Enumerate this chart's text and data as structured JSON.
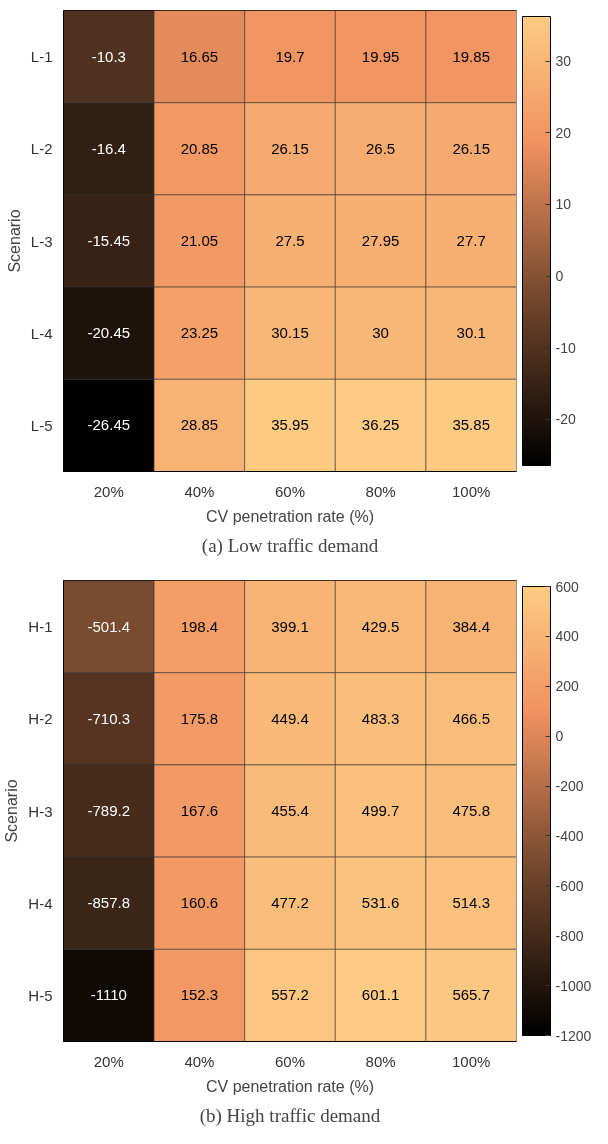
{
  "chart_data": [
    {
      "type": "heatmap",
      "xlabel": "CV penetration rate (%)",
      "ylabel": "Scenario",
      "categories": [
        "20%",
        "40%",
        "60%",
        "80%",
        "100%"
      ],
      "y_categories": [
        "L-1",
        "L-2",
        "L-3",
        "L-4",
        "L-5"
      ],
      "cells": [
        [
          -10.3,
          16.65,
          19.7,
          19.95,
          19.85
        ],
        [
          -16.4,
          20.85,
          26.15,
          26.5,
          26.15
        ],
        [
          -15.45,
          21.05,
          27.5,
          27.95,
          27.7
        ],
        [
          -20.45,
          23.25,
          30.15,
          30,
          30.1
        ],
        [
          -26.45,
          28.85,
          35.95,
          36.25,
          35.85
        ]
      ],
      "clim": [
        -26.45,
        36.25
      ],
      "cticks": [
        -20,
        -10,
        0,
        10,
        20,
        30
      ],
      "grid": false,
      "data_labels": true,
      "annotations": [
        "(a) Low traffic demand"
      ]
    },
    {
      "type": "heatmap",
      "xlabel": "CV penetration rate (%)",
      "ylabel": "Scenario",
      "categories": [
        "20%",
        "40%",
        "60%",
        "80%",
        "100%"
      ],
      "y_categories": [
        "H-1",
        "H-2",
        "H-3",
        "H-4",
        "H-5"
      ],
      "cells": [
        [
          -501.4,
          198.4,
          399.1,
          429.5,
          384.4
        ],
        [
          -710.3,
          175.8,
          449.4,
          483.3,
          466.5
        ],
        [
          -789.2,
          167.6,
          455.4,
          499.7,
          475.8
        ],
        [
          -857.8,
          160.6,
          477.2,
          531.6,
          514.3
        ],
        [
          -1110,
          152.3,
          557.2,
          601.1,
          565.7
        ]
      ],
      "clim": [
        -1200,
        600
      ],
      "cticks": [
        -1200,
        -1000,
        -800,
        -600,
        -400,
        -200,
        0,
        200,
        400,
        600
      ],
      "grid": false,
      "data_labels": true,
      "annotations": [
        "(b) High traffic demand"
      ]
    }
  ]
}
